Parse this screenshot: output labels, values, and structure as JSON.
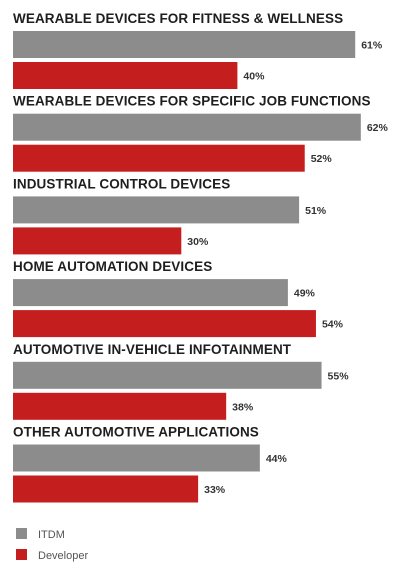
{
  "chart_data": {
    "type": "bar",
    "orientation": "horizontal",
    "title": "",
    "xlabel": "",
    "ylabel": "",
    "xlim": [
      0,
      100
    ],
    "grid": false,
    "legend_position": "bottom-left",
    "categories": [
      "WEARABLE DEVICES FOR FITNESS & WELLNESS",
      "WEARABLE DEVICES FOR SPECIFIC JOB FUNCTIONS",
      "INDUSTRIAL CONTROL DEVICES",
      "HOME AUTOMATION DEVICES",
      "AUTOMOTIVE IN-VEHICLE INFOTAINMENT",
      "OTHER AUTOMOTIVE APPLICATIONS"
    ],
    "series": [
      {
        "name": "ITDM",
        "color": "#8c8c8c",
        "values": [
          61,
          62,
          51,
          49,
          55,
          44
        ]
      },
      {
        "name": "Developer",
        "color": "#c41e1f",
        "values": [
          40,
          52,
          30,
          54,
          38,
          33
        ]
      }
    ],
    "value_suffix": "%"
  }
}
